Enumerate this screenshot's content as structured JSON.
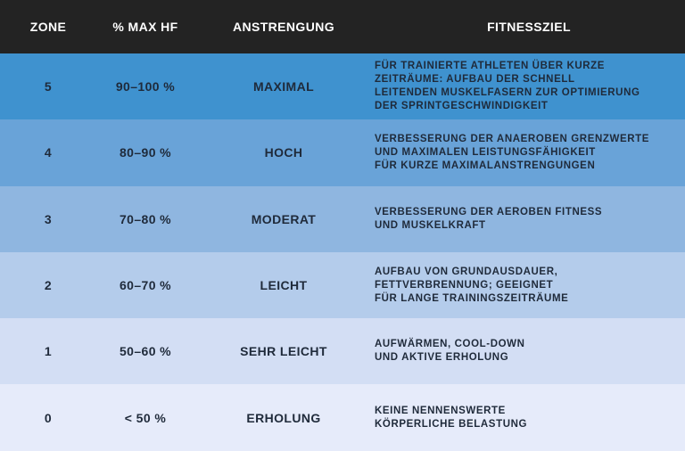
{
  "header": {
    "zone": "ZONE",
    "hf": "% MAX HF",
    "effort": "ANSTRENGUNG",
    "goal": "FITNESSZIEL"
  },
  "colors": {
    "header_bg": "#232323",
    "zone5": "#3f92cf",
    "zone4": "#69a3d8",
    "zone3": "#8fb6e0",
    "zone2": "#b4cceb",
    "zone1": "#d3def4",
    "zone0": "#e6ebfa"
  },
  "rows": [
    {
      "zone": "5",
      "hf": "90–100 %",
      "effort": "MAXIMAL",
      "goal": [
        "FÜR TRAINIERTE ATHLETEN ÜBER KURZE",
        "ZEITRÄUME: AUFBAU DER SCHNELL",
        "LEITENDEN MUSKELFASERN ZUR OPTIMIERUNG",
        "DER SPRINTGESCHWINDIGKEIT"
      ]
    },
    {
      "zone": "4",
      "hf": "80–90 %",
      "effort": "HOCH",
      "goal": [
        "VERBESSERUNG DER ANAEROBEN GRENZWERTE",
        "UND MAXIMALEN LEISTUNGSFÄHIGKEIT",
        "FÜR KURZE MAXIMALANSTRENGUNGEN"
      ]
    },
    {
      "zone": "3",
      "hf": "70–80 %",
      "effort": "MODERAT",
      "goal": [
        "VERBESSERUNG DER AEROBEN FITNESS",
        "UND MUSKELKRAFT"
      ]
    },
    {
      "zone": "2",
      "hf": "60–70 %",
      "effort": "LEICHT",
      "goal": [
        "AUFBAU VON GRUNDAUSDAUER,",
        "FETTVERBRENNUNG; GEEIGNET",
        "FÜR LANGE TRAININGSZEITRÄUME"
      ]
    },
    {
      "zone": "1",
      "hf": "50–60 %",
      "effort": "SEHR LEICHT",
      "goal": [
        "AUFWÄRMEN, COOL-DOWN",
        "UND AKTIVE ERHOLUNG"
      ]
    },
    {
      "zone": "0",
      "hf": "< 50 %",
      "effort": "ERHOLUNG",
      "goal": [
        "KEINE NENNENSWERTE",
        "KÖRPERLICHE BELASTUNG"
      ]
    }
  ]
}
